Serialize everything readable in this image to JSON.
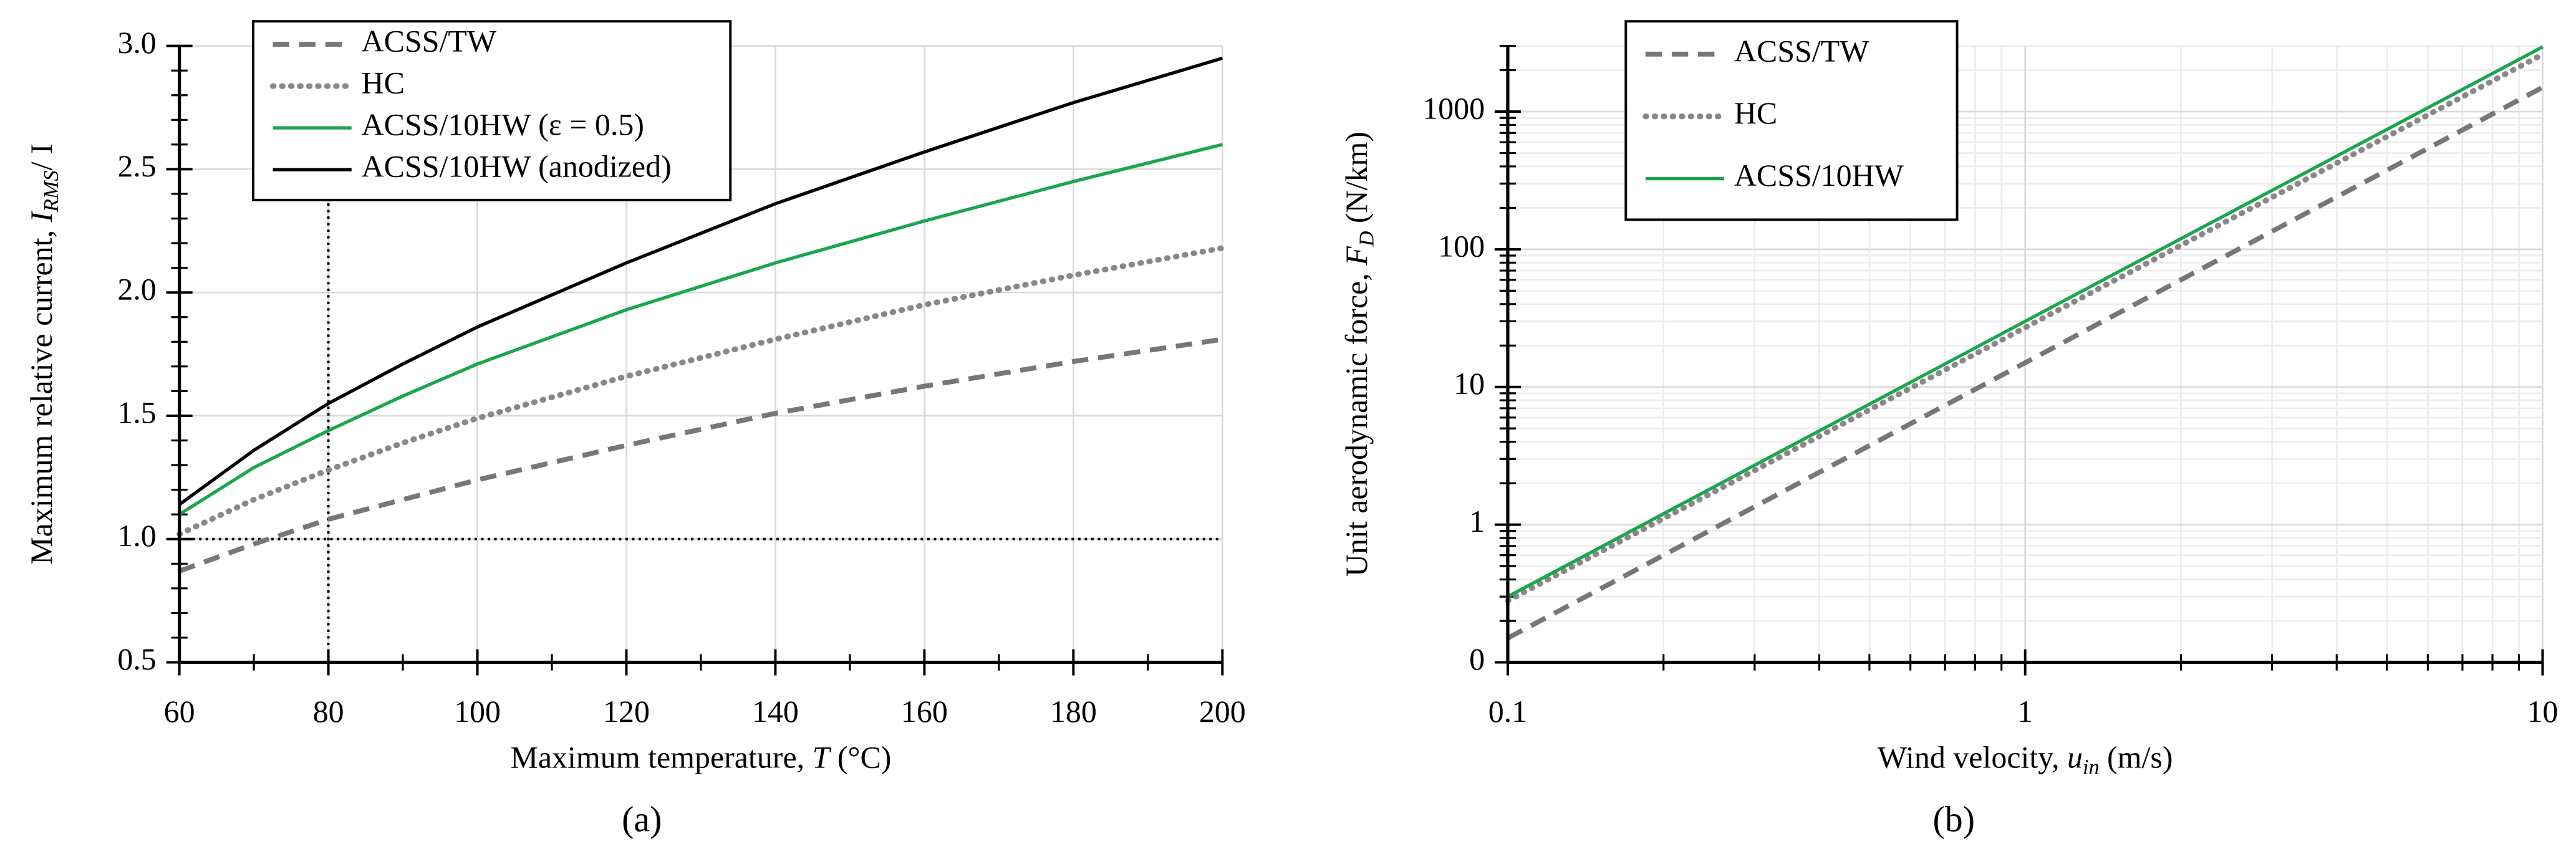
{
  "chart_data": [
    {
      "type": "line",
      "caption": "(a)",
      "xlabel": {
        "text": "Maximum temperature, ",
        "var": "T",
        "rest": " (°C)"
      },
      "ylabel": {
        "text": "Maximum relative current, ",
        "var": "I",
        "sub": "RMS",
        "rest": "/ I"
      },
      "x": [
        60,
        70,
        80,
        90,
        100,
        120,
        140,
        160,
        180,
        200
      ],
      "series": [
        {
          "name": "ACSS/TW",
          "color": "#777777",
          "linestyle": "dashed",
          "values": [
            0.87,
            0.98,
            1.08,
            1.16,
            1.24,
            1.38,
            1.51,
            1.62,
            1.72,
            1.81
          ]
        },
        {
          "name": "HC",
          "color": "#888888",
          "linestyle": "dotted",
          "values": [
            1.02,
            1.16,
            1.28,
            1.39,
            1.49,
            1.66,
            1.81,
            1.95,
            2.07,
            2.18
          ]
        },
        {
          "name": "ACSS/10HW (ε = 0.5)",
          "color": "#1aa64a",
          "linestyle": "solid",
          "values": [
            1.1,
            1.29,
            1.44,
            1.58,
            1.71,
            1.93,
            2.12,
            2.29,
            2.45,
            2.6
          ]
        },
        {
          "name": "ACSS/10HW (anodized)",
          "color": "#000000",
          "linestyle": "solid",
          "values": [
            1.14,
            1.36,
            1.55,
            1.71,
            1.86,
            2.12,
            2.36,
            2.57,
            2.77,
            2.95
          ]
        }
      ],
      "xlim": [
        60,
        200
      ],
      "xticks": [
        60,
        80,
        100,
        120,
        140,
        160,
        180,
        200
      ],
      "xminorticks": [
        70,
        90,
        110,
        130,
        150,
        170,
        190
      ],
      "ylim": [
        0.5,
        3.0
      ],
      "yticks": [
        0.5,
        {
          "value": 1,
          "label": "1.0"
        },
        1.5,
        {
          "value": 2,
          "label": "2.0"
        },
        2.5,
        {
          "value": 3,
          "label": "3.0"
        }
      ],
      "yminorticks": [
        0.6,
        0.7,
        0.8,
        0.9,
        1.1,
        1.2,
        1.3,
        1.4,
        1.6,
        1.7,
        1.8,
        1.9,
        2.1,
        2.2,
        2.3,
        2.4,
        2.6,
        2.7,
        2.8,
        2.9
      ],
      "ref_x": 80,
      "ref_y": 1,
      "grid": true,
      "minor_grid": false,
      "legend": "upper left"
    },
    {
      "type": "line",
      "caption": "(b)",
      "xlabel": {
        "text": "Wind velocity, ",
        "var": "u",
        "sub": "in",
        "rest": " (m/s)"
      },
      "ylabel": {
        "text": "Unit aerodynamic force, ",
        "var": "F",
        "sub": "D",
        "rest": " (N/km)"
      },
      "x": [
        0.1,
        1,
        10
      ],
      "series": [
        {
          "name": "ACSS/TW",
          "color": "#777777",
          "linestyle": "dashed",
          "values": [
            0.15,
            15,
            1500
          ]
        },
        {
          "name": "HC",
          "color": "#888888",
          "linestyle": "dotted",
          "values": [
            0.28,
            27,
            2600
          ]
        },
        {
          "name": "ACSS/10HW",
          "color": "#1aa64a",
          "linestyle": "solid",
          "values": [
            0.3,
            30,
            2950
          ]
        }
      ],
      "xlog": true,
      "ylog": true,
      "xlim": [
        0.1,
        10
      ],
      "xticks": [
        0.1,
        1,
        10
      ],
      "xminorticks": [
        0.2,
        0.3,
        0.4,
        0.5,
        0.6,
        0.7,
        0.8,
        0.9,
        2,
        3,
        4,
        5,
        6,
        7,
        8,
        9
      ],
      "ylim": [
        0.1,
        3000
      ],
      "yticks": [
        {
          "value": 0.1,
          "label": "0"
        },
        1,
        10,
        100,
        1000
      ],
      "yminorticks": [
        0.2,
        0.3,
        0.4,
        0.5,
        0.6,
        0.7,
        0.8,
        0.9,
        2,
        3,
        4,
        5,
        6,
        7,
        8,
        9,
        20,
        30,
        40,
        50,
        60,
        70,
        80,
        90,
        200,
        300,
        400,
        500,
        600,
        700,
        800,
        900,
        2000,
        3000
      ],
      "grid": true,
      "minor_grid": true,
      "legend": "upper left"
    }
  ]
}
